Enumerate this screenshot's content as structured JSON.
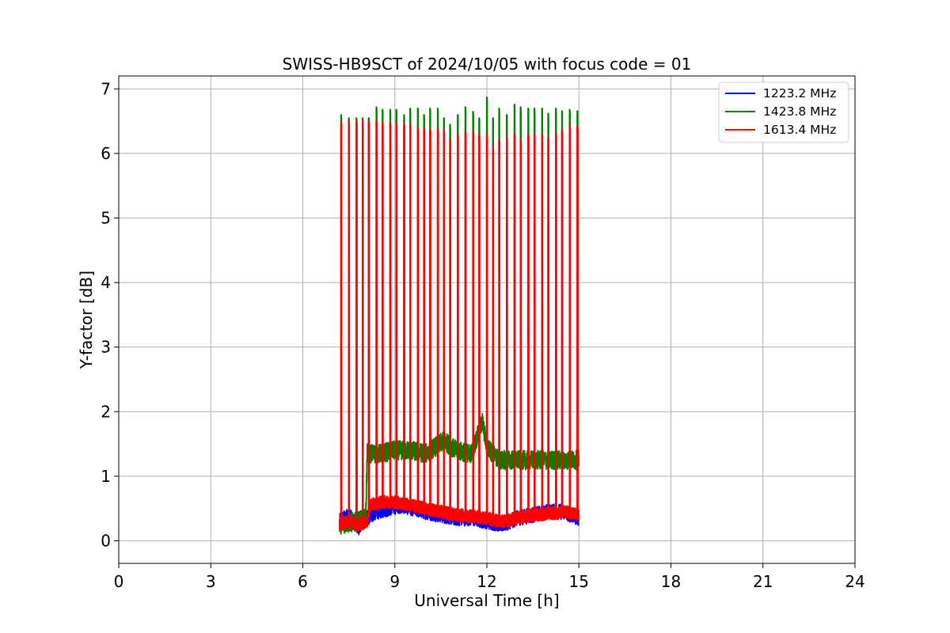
{
  "chart_data": {
    "type": "line",
    "title": "SWISS-HB9SCT of 2024/10/05 with focus code = 01",
    "xlabel": "Universal Time [h]",
    "ylabel": "Y-factor [dB]",
    "xlim": [
      0,
      24
    ],
    "ylim": [
      -0.35,
      7.2
    ],
    "xticks": [
      0,
      3,
      6,
      9,
      12,
      15,
      18,
      21,
      24
    ],
    "yticks": [
      0,
      1,
      2,
      3,
      4,
      5,
      6,
      7
    ],
    "grid": true,
    "legend_position": "top-right",
    "data_range_h": [
      7.2,
      15.0
    ],
    "series": [
      {
        "name": "1223.2 MHz",
        "color": "#0000ff",
        "baseline": [
          [
            7.2,
            0.3
          ],
          [
            7.5,
            0.4
          ],
          [
            7.8,
            0.2
          ],
          [
            8.1,
            0.35
          ],
          [
            8.4,
            0.45
          ],
          [
            8.8,
            0.5
          ],
          [
            9.2,
            0.55
          ],
          [
            9.6,
            0.5
          ],
          [
            10.0,
            0.45
          ],
          [
            10.5,
            0.4
          ],
          [
            11.0,
            0.35
          ],
          [
            11.5,
            0.35
          ],
          [
            12.0,
            0.3
          ],
          [
            12.5,
            0.25
          ],
          [
            13.0,
            0.35
          ],
          [
            13.5,
            0.4
          ],
          [
            14.0,
            0.45
          ],
          [
            14.5,
            0.45
          ],
          [
            15.0,
            0.35
          ]
        ],
        "noise": 0.12
      },
      {
        "name": "1423.8 MHz",
        "color": "#008000",
        "baseline": [
          [
            7.2,
            0.25
          ],
          [
            7.8,
            0.3
          ],
          [
            8.05,
            0.35
          ],
          [
            8.1,
            1.35
          ],
          [
            8.5,
            1.35
          ],
          [
            9.0,
            1.4
          ],
          [
            9.5,
            1.4
          ],
          [
            10.0,
            1.35
          ],
          [
            10.6,
            1.55
          ],
          [
            11.0,
            1.4
          ],
          [
            11.5,
            1.35
          ],
          [
            11.85,
            1.85
          ],
          [
            12.0,
            1.45
          ],
          [
            12.4,
            1.25
          ],
          [
            13.0,
            1.25
          ],
          [
            13.5,
            1.25
          ],
          [
            14.0,
            1.25
          ],
          [
            14.5,
            1.25
          ],
          [
            15.0,
            1.25
          ]
        ],
        "noise": 0.15,
        "spikes": [
          [
            7.25,
            6.6
          ],
          [
            7.5,
            6.55
          ],
          [
            7.75,
            6.55
          ],
          [
            7.95,
            6.55
          ],
          [
            8.15,
            6.55
          ],
          [
            8.4,
            6.72
          ],
          [
            8.6,
            6.68
          ],
          [
            8.85,
            6.68
          ],
          [
            9.05,
            6.68
          ],
          [
            9.3,
            6.6
          ],
          [
            9.5,
            6.7
          ],
          [
            9.75,
            6.7
          ],
          [
            9.95,
            6.6
          ],
          [
            10.15,
            6.7
          ],
          [
            10.4,
            6.7
          ],
          [
            10.6,
            6.55
          ],
          [
            10.8,
            6.45
          ],
          [
            11.05,
            6.6
          ],
          [
            11.3,
            6.72
          ],
          [
            11.55,
            6.65
          ],
          [
            11.75,
            6.55
          ],
          [
            12.0,
            6.87
          ],
          [
            12.2,
            6.55
          ],
          [
            12.4,
            6.7
          ],
          [
            12.65,
            6.6
          ],
          [
            12.9,
            6.76
          ],
          [
            13.1,
            6.72
          ],
          [
            13.35,
            6.7
          ],
          [
            13.55,
            6.7
          ],
          [
            13.8,
            6.7
          ],
          [
            14.0,
            6.62
          ],
          [
            14.25,
            6.7
          ],
          [
            14.45,
            6.66
          ],
          [
            14.7,
            6.68
          ],
          [
            14.95,
            6.66
          ]
        ]
      },
      {
        "name": "1613.4 MHz",
        "color": "#ff0000",
        "baseline": [
          [
            7.2,
            0.25
          ],
          [
            7.5,
            0.3
          ],
          [
            7.8,
            0.25
          ],
          [
            8.1,
            0.3
          ],
          [
            8.2,
            0.55
          ],
          [
            8.6,
            0.6
          ],
          [
            9.0,
            0.6
          ],
          [
            9.5,
            0.55
          ],
          [
            10.0,
            0.5
          ],
          [
            10.5,
            0.45
          ],
          [
            11.0,
            0.4
          ],
          [
            11.5,
            0.38
          ],
          [
            12.0,
            0.35
          ],
          [
            12.5,
            0.3
          ],
          [
            13.0,
            0.35
          ],
          [
            13.5,
            0.4
          ],
          [
            14.0,
            0.42
          ],
          [
            14.5,
            0.45
          ],
          [
            15.0,
            0.4
          ]
        ],
        "noise": 0.1,
        "spikes": [
          [
            7.25,
            6.48
          ],
          [
            7.5,
            6.5
          ],
          [
            7.75,
            6.5
          ],
          [
            7.95,
            6.5
          ],
          [
            8.15,
            6.5
          ],
          [
            8.4,
            6.5
          ],
          [
            8.6,
            6.48
          ],
          [
            8.85,
            6.48
          ],
          [
            9.05,
            6.46
          ],
          [
            9.3,
            6.45
          ],
          [
            9.5,
            6.45
          ],
          [
            9.75,
            6.4
          ],
          [
            9.95,
            6.4
          ],
          [
            10.15,
            6.38
          ],
          [
            10.4,
            6.38
          ],
          [
            10.6,
            6.36
          ],
          [
            10.8,
            6.22
          ],
          [
            11.05,
            6.3
          ],
          [
            11.3,
            6.34
          ],
          [
            11.55,
            6.34
          ],
          [
            11.75,
            6.3
          ],
          [
            12.0,
            6.3
          ],
          [
            12.2,
            6.1
          ],
          [
            12.4,
            6.2
          ],
          [
            12.65,
            6.24
          ],
          [
            12.9,
            6.3
          ],
          [
            13.1,
            6.22
          ],
          [
            13.35,
            6.3
          ],
          [
            13.55,
            6.3
          ],
          [
            13.8,
            6.3
          ],
          [
            14.0,
            6.24
          ],
          [
            14.25,
            6.32
          ],
          [
            14.45,
            6.36
          ],
          [
            14.7,
            6.42
          ],
          [
            14.95,
            6.42
          ]
        ]
      }
    ]
  }
}
